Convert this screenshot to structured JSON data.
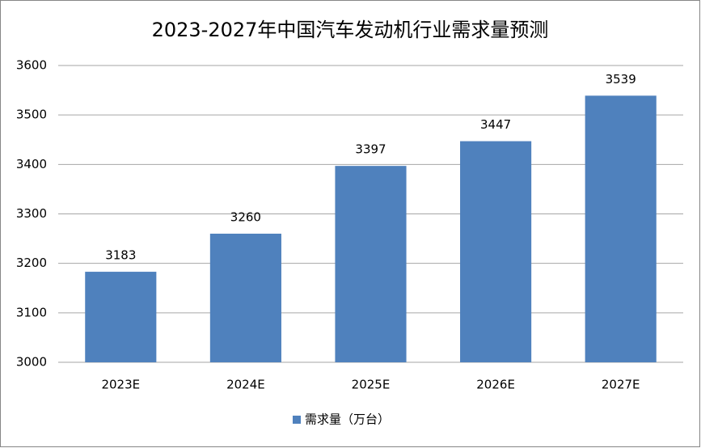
{
  "chart_data": {
    "type": "bar",
    "title": "2023-2027年中国汽车发动机行业需求量预测",
    "categories": [
      "2023E",
      "2024E",
      "2025E",
      "2026E",
      "2027E"
    ],
    "series": [
      {
        "name": "需求量（万台）",
        "color": "#4f81bd",
        "values": [
          3183,
          3260,
          3397,
          3447,
          3539
        ]
      }
    ],
    "ylim": [
      3000,
      3600
    ],
    "yticks": [
      3000,
      3100,
      3200,
      3300,
      3400,
      3500,
      3600
    ],
    "grid": true,
    "legend": "bottom"
  }
}
